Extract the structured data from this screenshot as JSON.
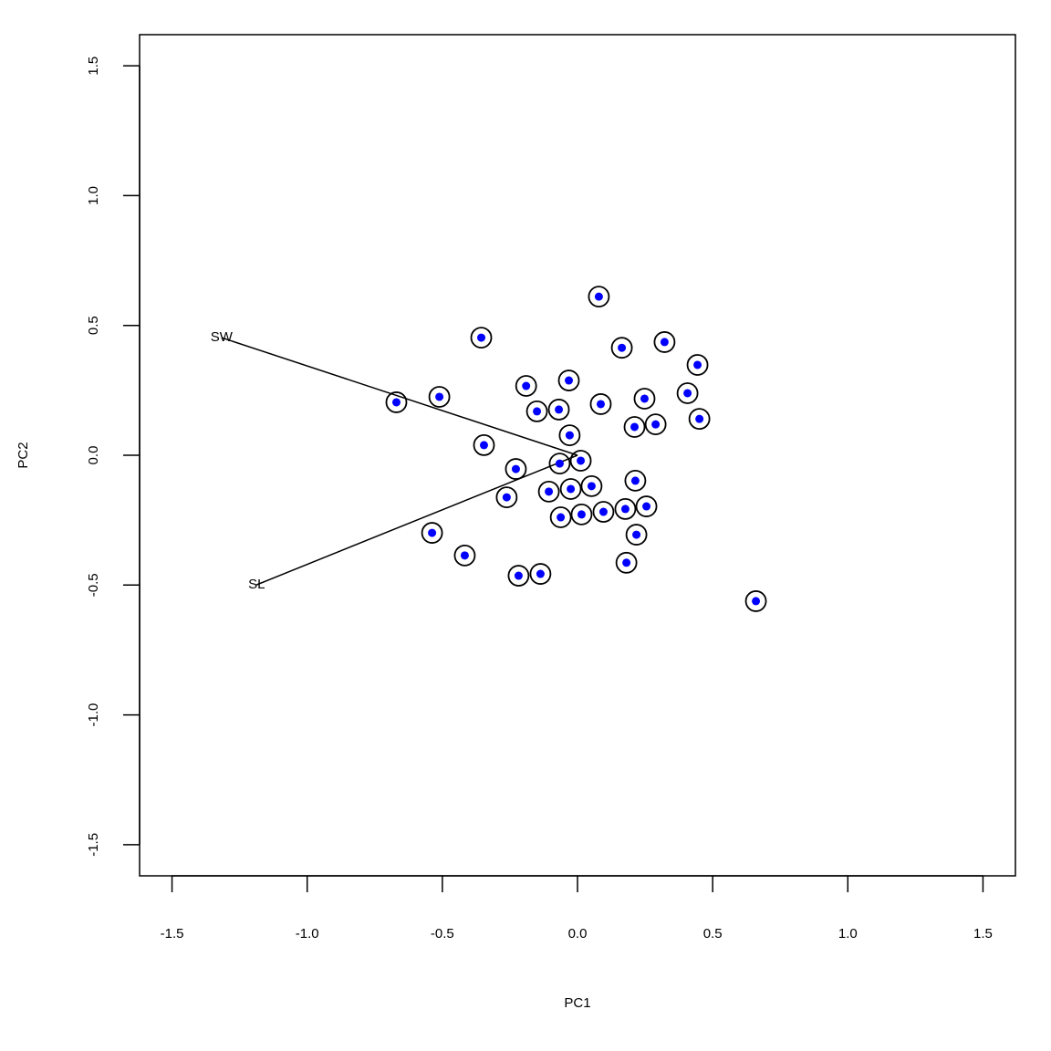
{
  "chart_data": {
    "type": "biplot",
    "x_label": "PC1",
    "y_label": "PC2",
    "xlim": [
      -1.62,
      1.62
    ],
    "ylim": [
      -1.62,
      1.62
    ],
    "xticks": [
      -1.5,
      {
        "value": -1,
        "label": "-1.0"
      },
      -0.5,
      {
        "value": 0,
        "label": "0.0"
      },
      0.5,
      {
        "value": 1,
        "label": "1.0"
      },
      1.5
    ],
    "yticks": [
      -1.5,
      {
        "value": -1,
        "label": "-1.0"
      },
      -0.5,
      {
        "value": 0,
        "label": "0.0"
      },
      0.5,
      {
        "value": 1,
        "label": "1.0"
      },
      1.5
    ],
    "point_color": "#0000ff",
    "ring_color": "#000000",
    "x": [
      0.079,
      -0.356,
      0.164,
      0.322,
      0.444,
      -0.19,
      -0.032,
      -0.511,
      -0.67,
      -0.15,
      -0.069,
      0.086,
      0.248,
      0.407,
      0.451,
      0.289,
      0.211,
      -0.029,
      -0.346,
      -0.228,
      -0.066,
      0.012,
      0.214,
      0.052,
      -0.025,
      -0.106,
      -0.262,
      -0.062,
      0.015,
      0.096,
      0.177,
      0.255,
      0.218,
      -0.538,
      -0.417,
      -0.218,
      -0.137,
      0.181,
      0.66
    ],
    "y": [
      0.611,
      0.453,
      0.414,
      0.436,
      0.348,
      0.267,
      0.288,
      0.225,
      0.204,
      0.169,
      0.176,
      0.197,
      0.218,
      0.239,
      0.14,
      0.119,
      0.109,
      0.077,
      0.039,
      -0.053,
      -0.032,
      -0.021,
      -0.098,
      -0.119,
      -0.13,
      -0.14,
      -0.162,
      -0.239,
      -0.228,
      -0.218,
      -0.207,
      -0.197,
      -0.306,
      -0.299,
      -0.386,
      -0.464,
      -0.457,
      -0.414,
      -0.562
    ],
    "loadings": [
      {
        "name": "SW",
        "x": -1.317,
        "y": 0.453
      },
      {
        "name": "SL",
        "x": -1.187,
        "y": -0.499
      }
    ]
  }
}
